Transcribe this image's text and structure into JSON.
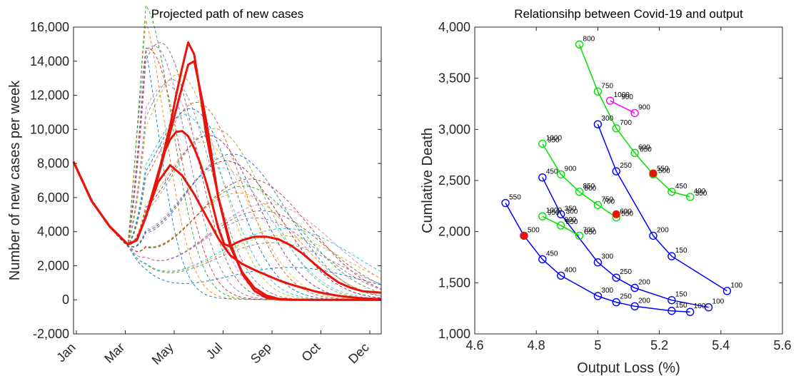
{
  "chart_data": [
    {
      "type": "line",
      "title": "Projected path of new cases",
      "xlabel": "",
      "ylabel": "Number of new cases per week",
      "x_ticks": [
        "Jan",
        "Mar",
        "May",
        "Jul",
        "Sep",
        "Oct",
        "Dec"
      ],
      "xlim": [
        0,
        51
      ],
      "ylim": [
        -2000,
        16000
      ],
      "y_ticks": [
        "-2,000",
        "0",
        "2,000",
        "4,000",
        "6,000",
        "8,000",
        "10,000",
        "12,000",
        "14,000",
        "16,000"
      ],
      "y_tick_values": [
        -2000,
        0,
        2000,
        4000,
        6000,
        8000,
        10000,
        12000,
        14000,
        16000
      ],
      "highlighted_series_color": "#e8140c",
      "highlighted_series": [
        {
          "x": [
            0,
            3,
            6,
            9,
            10.5,
            12,
            14,
            16,
            18,
            19,
            20,
            21,
            22,
            23,
            24,
            26,
            28,
            30,
            32,
            34,
            36,
            38,
            40,
            42,
            45,
            48,
            51
          ],
          "y": [
            8100,
            5800,
            4300,
            3250,
            3500,
            4900,
            7200,
            9800,
            12500,
            13800,
            14000,
            12300,
            10500,
            8200,
            6000,
            3300,
            1500,
            520,
            120,
            20,
            0,
            0,
            0,
            0,
            0,
            0,
            0
          ]
        },
        {
          "x": [
            0,
            3,
            6,
            9,
            10.5,
            12,
            14,
            16,
            17,
            18,
            19,
            20,
            21,
            22,
            24,
            26,
            28,
            30,
            32,
            34,
            36,
            38,
            40,
            42,
            45,
            48,
            51
          ],
          "y": [
            8100,
            5800,
            4300,
            3250,
            3500,
            4900,
            7300,
            10200,
            12000,
            13600,
            15100,
            14400,
            12100,
            9700,
            6000,
            3100,
            1600,
            700,
            250,
            60,
            10,
            0,
            0,
            0,
            0,
            0,
            0
          ]
        },
        {
          "x": [
            0,
            3,
            6,
            9,
            10.5,
            12,
            14,
            15,
            16,
            17,
            18,
            19,
            20,
            21,
            22,
            23,
            24,
            25,
            26,
            27,
            28,
            30,
            32,
            34,
            36,
            38,
            40,
            42,
            44,
            46,
            48,
            51
          ],
          "y": [
            8100,
            5800,
            4300,
            3250,
            3500,
            4900,
            7400,
            8600,
            9400,
            9850,
            9900,
            9600,
            8900,
            8000,
            6900,
            5600,
            4200,
            3250,
            3150,
            3350,
            3500,
            3700,
            3700,
            3550,
            3200,
            2700,
            2100,
            1500,
            1000,
            700,
            500,
            420
          ]
        },
        {
          "x": [
            0,
            3,
            6,
            9,
            10.5,
            12,
            14,
            16,
            18,
            20,
            22,
            24,
            26,
            28,
            30,
            32,
            34,
            36,
            38,
            40,
            42,
            44,
            46,
            48,
            51
          ],
          "y": [
            8100,
            5800,
            4300,
            3250,
            3500,
            4900,
            6900,
            7900,
            7300,
            6200,
            4900,
            3600,
            2600,
            2100,
            1750,
            1450,
            1150,
            900,
            700,
            500,
            350,
            230,
            150,
            90,
            40
          ]
        }
      ],
      "dashed_scenarios": {
        "count": 28,
        "style": "thin dashed, multicolored"
      }
    },
    {
      "type": "scatter",
      "title": "Relationsihp between Covid-19 and output",
      "xlabel": "Output Loss (%)",
      "ylabel": "Cumlative Death",
      "xlim": [
        4.6,
        5.6
      ],
      "ylim": [
        1000,
        4000
      ],
      "x_ticks": [
        "4.6",
        "4.8",
        "5",
        "5.2",
        "5.4",
        "5.6"
      ],
      "x_tick_values": [
        4.6,
        4.8,
        5.0,
        5.2,
        5.4,
        5.6
      ],
      "y_ticks": [
        "1,000",
        "1,500",
        "2,000",
        "2,500",
        "3,000",
        "3,500",
        "4,000"
      ],
      "y_tick_values": [
        1000,
        1500,
        2000,
        2500,
        3000,
        3500,
        4000
      ],
      "series": [
        {
          "color": "#0000ff",
          "points": [
            [
              4.7,
              2280,
              "550"
            ],
            [
              4.76,
              1960,
              "500"
            ],
            [
              4.82,
              1730,
              "450"
            ],
            [
              4.88,
              1570,
              "400"
            ],
            [
              5.0,
              1370,
              "300"
            ],
            [
              5.06,
              1310,
              "250"
            ],
            [
              5.12,
              1270,
              "200"
            ],
            [
              5.24,
              1225,
              "150"
            ],
            [
              5.3,
              1215,
              "100"
            ]
          ]
        },
        {
          "color": "#0000ff",
          "points": [
            [
              4.82,
              2530,
              "450"
            ],
            [
              4.88,
              2170,
              "350"
            ],
            [
              5.0,
              1700,
              "300"
            ],
            [
              5.06,
              1550,
              "250"
            ],
            [
              5.12,
              1450,
              "200"
            ],
            [
              5.24,
              1330,
              "150"
            ],
            [
              5.36,
              1260,
              "100"
            ]
          ]
        },
        {
          "color": "#0000ff",
          "points": [
            [
              5.0,
              3050,
              "300"
            ],
            [
              5.06,
              2590,
              "250"
            ],
            [
              5.18,
              1960,
              "200"
            ],
            [
              5.24,
              1760,
              "150"
            ],
            [
              5.42,
              1420,
              "100"
            ]
          ]
        },
        {
          "color": "#00e000",
          "points": [
            [
              4.94,
              3830,
              "800"
            ],
            [
              5.0,
              3370,
              "750"
            ],
            [
              5.06,
              3010,
              "700"
            ],
            [
              5.12,
              2770,
              "600"
            ],
            [
              5.18,
              2560,
              "550"
            ],
            [
              5.24,
              2390,
              "450"
            ],
            [
              5.3,
              2340,
              "400"
            ]
          ]
        },
        {
          "color": "#00e000",
          "points": [
            [
              4.82,
              2860,
              "1000"
            ],
            [
              4.88,
              2560,
              "900"
            ],
            [
              4.94,
              2390,
              "850"
            ],
            [
              5.0,
              2260,
              "750"
            ],
            [
              5.06,
              2140,
              "600"
            ]
          ]
        },
        {
          "color": "#00e000",
          "points": [
            [
              4.82,
              2150,
              "1000"
            ],
            [
              4.88,
              2060,
              "800"
            ],
            [
              4.94,
              1960,
              "700"
            ]
          ]
        },
        {
          "color": "#ff00ff",
          "points": [
            [
              5.04,
              3280,
              "1000"
            ],
            [
              5.12,
              3160,
              "900"
            ]
          ]
        }
      ],
      "highlight_color": "#e8140c",
      "highlighted_points": [
        [
          4.76,
          1960
        ],
        [
          5.06,
          2170
        ],
        [
          5.18,
          2570
        ]
      ],
      "extra_labels": [
        [
          4.88,
          2160,
          "300"
        ],
        [
          4.94,
          2390,
          "800"
        ],
        [
          4.88,
          2060,
          "850"
        ],
        [
          5.06,
          3280,
          "900"
        ],
        [
          5.12,
          2770,
          "650"
        ],
        [
          5.18,
          2560,
          "500"
        ],
        [
          5.3,
          2340,
          "350"
        ],
        [
          4.82,
          2860,
          "950"
        ],
        [
          5.0,
          2260,
          "700"
        ],
        [
          5.06,
          2140,
          "550"
        ],
        [
          4.82,
          2150,
          "950"
        ],
        [
          4.94,
          1960,
          "650"
        ]
      ]
    }
  ]
}
